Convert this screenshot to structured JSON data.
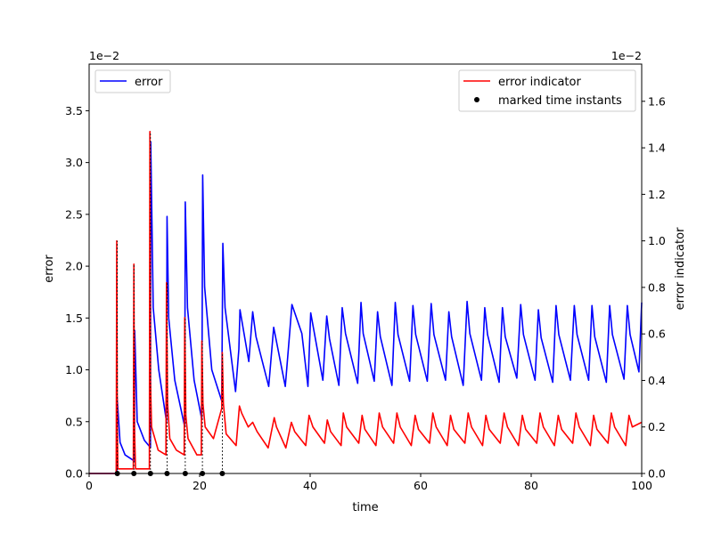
{
  "chart_data": {
    "type": "line",
    "xlabel": "time",
    "ylabel_left": "error",
    "ylabel_right": "error indicator",
    "left_offset_text": "1e−2",
    "right_offset_text": "1e−2",
    "xlim": [
      0,
      100
    ],
    "ylim_left": [
      0,
      3.95
    ],
    "ylim_right": [
      0,
      1.76
    ],
    "x_ticks": [
      0,
      20,
      40,
      60,
      80,
      100
    ],
    "x_tick_labels": [
      "0",
      "20",
      "40",
      "60",
      "80",
      "100"
    ],
    "left_ticks": [
      0.0,
      0.5,
      1.0,
      1.5,
      2.0,
      2.5,
      3.0,
      3.5
    ],
    "left_tick_labels": [
      "0.0",
      "0.5",
      "1.0",
      "1.5",
      "2.0",
      "2.5",
      "3.0",
      "3.5"
    ],
    "right_ticks": [
      0.0,
      0.2,
      0.4,
      0.6,
      0.8,
      1.0,
      1.2,
      1.4,
      1.6
    ],
    "right_tick_labels": [
      "0.0",
      "0.2",
      "0.4",
      "0.6",
      "0.8",
      "1.0",
      "1.2",
      "1.4",
      "1.6"
    ],
    "grid": false,
    "series": [
      {
        "name": "error",
        "axis": "left",
        "color": "#0000ff",
        "legend_position": "upper-left",
        "x": [
          0,
          5.0,
          5.05,
          5.6,
          6.5,
          8.2,
          8.25,
          8.7,
          10.0,
          11.1,
          11.15,
          11.6,
          12.6,
          14.0,
          14.1,
          14.4,
          15.5,
          17.3,
          17.4,
          17.8,
          19.0,
          20.4,
          20.55,
          20.9,
          22.2,
          24.0,
          24.2,
          24.6,
          26.5,
          27.1,
          27.3,
          28.9,
          29.6,
          30.2,
          32.5,
          33.4,
          35.5,
          36.3,
          36.7,
          38.5,
          39.6,
          40.1,
          42.3,
          43.0,
          43.5,
          45.2,
          45.8,
          46.4,
          48.6,
          49.2,
          49.6,
          51.6,
          52.2,
          52.7,
          54.8,
          55.4,
          55.9,
          58.0,
          58.6,
          59.1,
          61.2,
          61.9,
          62.4,
          64.5,
          65.1,
          65.6,
          67.7,
          68.4,
          68.9,
          71.0,
          71.6,
          72.1,
          74.2,
          74.8,
          75.3,
          77.4,
          78.1,
          78.6,
          80.7,
          81.3,
          81.8,
          83.9,
          84.5,
          85.0,
          87.1,
          87.8,
          88.3,
          90.4,
          91.0,
          91.5,
          93.6,
          94.2,
          94.7,
          96.8,
          97.4,
          97.9,
          99.5,
          100
        ],
        "y": [
          0.0,
          0.0,
          0.75,
          0.3,
          0.18,
          0.12,
          1.38,
          0.5,
          0.32,
          0.25,
          3.2,
          1.6,
          1.0,
          0.5,
          2.48,
          1.5,
          0.9,
          0.45,
          2.62,
          1.6,
          0.9,
          0.52,
          2.88,
          1.8,
          1.0,
          0.7,
          2.22,
          1.6,
          0.79,
          1.2,
          1.58,
          1.08,
          1.56,
          1.32,
          0.84,
          1.41,
          0.84,
          1.36,
          1.63,
          1.35,
          0.84,
          1.55,
          0.9,
          1.52,
          1.3,
          0.85,
          1.6,
          1.35,
          0.87,
          1.65,
          1.35,
          0.89,
          1.56,
          1.32,
          0.85,
          1.65,
          1.34,
          0.89,
          1.62,
          1.34,
          0.89,
          1.64,
          1.34,
          0.9,
          1.56,
          1.32,
          0.85,
          1.66,
          1.35,
          0.9,
          1.6,
          1.34,
          0.88,
          1.6,
          1.32,
          0.92,
          1.63,
          1.34,
          0.9,
          1.58,
          1.31,
          0.88,
          1.62,
          1.34,
          0.9,
          1.62,
          1.34,
          0.9,
          1.62,
          1.32,
          0.88,
          1.62,
          1.34,
          0.91,
          1.62,
          1.34,
          0.98,
          1.65
        ]
      },
      {
        "name": "error indicator",
        "axis": "right",
        "color": "#ff0000",
        "legend_position": "upper-right",
        "x": [
          0,
          4.9,
          5.0,
          5.1,
          5.2,
          8.0,
          8.1,
          8.2,
          8.4,
          10.9,
          11.0,
          11.1,
          11.3,
          12.5,
          13.9,
          14.0,
          14.2,
          14.6,
          15.8,
          17.2,
          17.3,
          17.5,
          17.9,
          19.5,
          20.3,
          20.4,
          20.6,
          21.0,
          22.5,
          24.0,
          24.1,
          24.3,
          24.8,
          26.6,
          27.2,
          27.6,
          28.8,
          29.6,
          30.4,
          32.4,
          33.5,
          33.9,
          35.6,
          36.6,
          37.2,
          39.2,
          39.8,
          40.5,
          42.6,
          43.1,
          43.7,
          45.6,
          46.0,
          46.6,
          48.8,
          49.4,
          49.9,
          51.9,
          52.5,
          53.1,
          55.1,
          55.7,
          56.3,
          58.3,
          59.0,
          59.6,
          61.6,
          62.2,
          62.8,
          64.8,
          65.4,
          66.0,
          68.0,
          68.6,
          69.2,
          71.2,
          71.8,
          72.4,
          74.4,
          75.1,
          75.7,
          77.7,
          78.4,
          79.0,
          81.0,
          81.6,
          82.2,
          84.2,
          84.9,
          85.5,
          87.5,
          88.1,
          88.7,
          90.7,
          91.3,
          91.9,
          93.9,
          94.5,
          95.1,
          97.1,
          97.7,
          98.3,
          100
        ],
        "y": [
          0.0,
          0.0,
          1.0,
          0.2,
          0.02,
          0.02,
          0.9,
          0.2,
          0.02,
          0.02,
          1.47,
          0.4,
          0.2,
          0.1,
          0.08,
          0.82,
          0.3,
          0.15,
          0.1,
          0.08,
          0.67,
          0.25,
          0.15,
          0.08,
          0.08,
          0.57,
          0.3,
          0.2,
          0.15,
          0.28,
          0.52,
          0.3,
          0.17,
          0.12,
          0.29,
          0.26,
          0.2,
          0.22,
          0.18,
          0.11,
          0.24,
          0.2,
          0.11,
          0.22,
          0.18,
          0.12,
          0.25,
          0.2,
          0.13,
          0.23,
          0.18,
          0.12,
          0.26,
          0.2,
          0.13,
          0.25,
          0.19,
          0.12,
          0.26,
          0.2,
          0.13,
          0.26,
          0.2,
          0.12,
          0.25,
          0.19,
          0.13,
          0.26,
          0.2,
          0.12,
          0.25,
          0.19,
          0.13,
          0.26,
          0.2,
          0.12,
          0.25,
          0.19,
          0.13,
          0.26,
          0.2,
          0.12,
          0.25,
          0.19,
          0.13,
          0.26,
          0.2,
          0.12,
          0.25,
          0.19,
          0.13,
          0.26,
          0.2,
          0.12,
          0.25,
          0.19,
          0.13,
          0.26,
          0.2,
          0.12,
          0.25,
          0.2,
          0.22
        ]
      },
      {
        "name": "marked time instants",
        "axis": "right",
        "type": "scatter",
        "color": "#000000",
        "legend_position": "upper-right",
        "x": [
          5.1,
          8.1,
          11.1,
          14.1,
          17.4,
          20.5,
          24.1
        ],
        "y": [
          0,
          0,
          0,
          0,
          0,
          0,
          0
        ],
        "drop_lines": true
      }
    ]
  }
}
